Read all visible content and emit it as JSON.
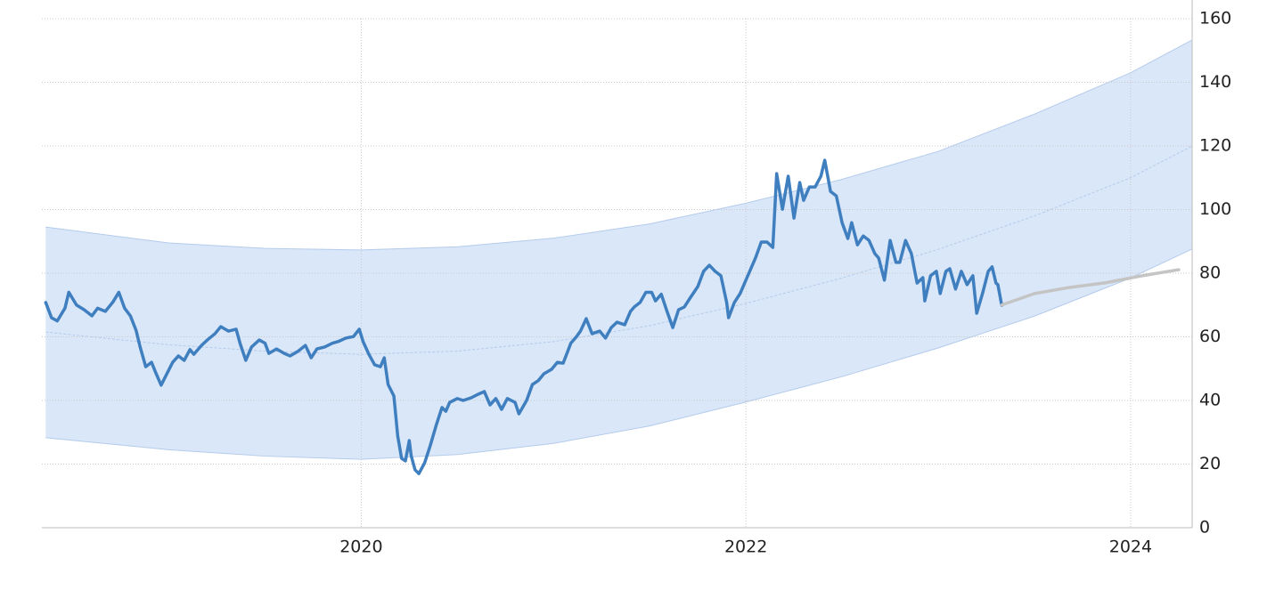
{
  "chart_data": {
    "type": "line",
    "xlim": [
      2018.34,
      2024.32
    ],
    "ylim": [
      0,
      160
    ],
    "xticks": [
      2020,
      2022,
      2024
    ],
    "yticks": [
      0,
      20,
      40,
      60,
      80,
      100,
      120,
      140,
      160
    ],
    "grid": true,
    "series": [
      {
        "color": "#3f7fbf",
        "x": [
          2018.36,
          2018.39,
          2018.42,
          2018.46,
          2018.48,
          2018.52,
          2018.56,
          2018.6,
          2018.63,
          2018.67,
          2018.71,
          2018.74,
          2018.77,
          2018.8,
          2018.83,
          2018.85,
          2018.88,
          2018.91,
          2018.93,
          2018.96,
          2018.99,
          2019.02,
          2019.05,
          2019.08,
          2019.11,
          2019.13,
          2019.17,
          2019.2,
          2019.24,
          2019.27,
          2019.31,
          2019.35,
          2019.37,
          2019.4,
          2019.43,
          2019.47,
          2019.5,
          2019.52,
          2019.56,
          2019.6,
          2019.63,
          2019.67,
          2019.71,
          2019.74,
          2019.77,
          2019.81,
          2019.85,
          2019.88,
          2019.92,
          2019.96,
          2019.99,
          2020.01,
          2020.04,
          2020.07,
          2020.1,
          2020.12,
          2020.14,
          2020.17,
          2020.19,
          2020.21,
          2020.23,
          2020.25,
          2020.26,
          2020.28,
          2020.3,
          2020.33,
          2020.36,
          2020.39,
          2020.42,
          2020.44,
          2020.46,
          2020.5,
          2020.53,
          2020.57,
          2020.61,
          2020.64,
          2020.67,
          2020.7,
          2020.73,
          2020.76,
          2020.8,
          2020.82,
          2020.86,
          2020.89,
          2020.92,
          2020.95,
          2020.99,
          2021.02,
          2021.05,
          2021.09,
          2021.12,
          2021.14,
          2021.17,
          2021.2,
          2021.24,
          2021.27,
          2021.3,
          2021.33,
          2021.37,
          2021.4,
          2021.42,
          2021.45,
          2021.48,
          2021.51,
          2021.53,
          2021.56,
          2021.59,
          2021.62,
          2021.65,
          2021.68,
          2021.71,
          2021.75,
          2021.78,
          2021.81,
          2021.84,
          2021.87,
          2021.9,
          2021.91,
          2021.94,
          2021.97,
          2022.0,
          2022.03,
          2022.05,
          2022.08,
          2022.11,
          2022.14,
          2022.16,
          2022.19,
          2022.22,
          2022.25,
          2022.28,
          2022.3,
          2022.33,
          2022.36,
          2022.39,
          2022.41,
          2022.44,
          2022.47,
          2022.5,
          2022.53,
          2022.55,
          2022.58,
          2022.61,
          2022.64,
          2022.67,
          2022.69,
          2022.72,
          2022.75,
          2022.78,
          2022.8,
          2022.83,
          2022.86,
          2022.89,
          2022.92,
          2022.93,
          2022.96,
          2022.99,
          2023.01,
          2023.04,
          2023.06,
          2023.09,
          2023.12,
          2023.15,
          2023.18,
          2023.2,
          2023.23,
          2023.26,
          2023.28,
          2023.3,
          2023.31,
          2023.33
        ],
        "values": [
          70.8,
          66,
          65,
          69,
          74,
          70,
          68.5,
          66.6,
          69,
          68,
          71,
          74,
          69,
          66.6,
          62,
          57,
          50.6,
          52,
          49,
          44.8,
          48.4,
          52,
          54,
          52.6,
          56,
          54.5,
          57.3,
          59,
          61,
          63.2,
          61.8,
          62.4,
          58,
          52.6,
          56.8,
          59,
          58,
          54.8,
          56.2,
          54.8,
          54,
          55.4,
          57.3,
          53.4,
          56.2,
          56.8,
          58,
          58.5,
          59.6,
          60.1,
          62.4,
          58.5,
          54.5,
          51.2,
          50.6,
          53.4,
          45,
          41.4,
          28.8,
          21.8,
          21,
          27.4,
          22.6,
          18.2,
          17,
          20.4,
          26,
          32.2,
          37.8,
          36.6,
          39.4,
          40.6,
          40,
          40.8,
          42,
          42.8,
          38.6,
          40.6,
          37.2,
          40.6,
          39.4,
          35.8,
          40,
          45,
          46.2,
          48.4,
          49.8,
          52,
          51.7,
          58,
          60.1,
          61.8,
          65.7,
          61,
          61.8,
          59.6,
          62.9,
          64.6,
          63.8,
          68,
          69.4,
          70.8,
          74,
          74,
          71.3,
          73.4,
          68,
          62.9,
          68.5,
          69.4,
          72.2,
          75.8,
          80.6,
          82.5,
          80.6,
          79.2,
          70.8,
          66,
          70.8,
          73.6,
          77.8,
          82,
          84.8,
          89.8,
          89.8,
          88.1,
          111.3,
          100.1,
          110.5,
          97.3,
          108.5,
          102.9,
          107.1,
          107.1,
          110.5,
          115.5,
          105.7,
          104.3,
          95.9,
          90.9,
          95.9,
          88.9,
          91.7,
          90.3,
          86.2,
          84.8,
          77.8,
          90.3,
          83.4,
          83.4,
          90.3,
          86.2,
          76.9,
          78.6,
          71.3,
          79.2,
          80.6,
          73.6,
          80.6,
          81.4,
          75,
          80.6,
          76.4,
          79.2,
          67.4,
          73.6,
          80.6,
          82,
          76.9,
          76.4,
          69.9
        ]
      },
      {
        "color": "#c4c4c4",
        "x": [
          2023.33,
          2023.5,
          2023.68,
          2023.87,
          2024.06,
          2024.25
        ],
        "values": [
          70,
          73.6,
          75.5,
          77,
          79.2,
          81.1
        ]
      }
    ],
    "band": {
      "color": "#dae7f8",
      "x": [
        2018.36,
        2019.0,
        2019.5,
        2020.0,
        2020.5,
        2021.0,
        2021.5,
        2022.0,
        2022.5,
        2023.0,
        2023.5,
        2024.0,
        2024.32
      ],
      "upper": [
        94.5,
        89.5,
        87.8,
        87.3,
        88.3,
        91,
        95.5,
        102,
        109.5,
        118.3,
        130,
        143,
        153.3
      ],
      "lower": [
        28.3,
        24.5,
        22.5,
        21.5,
        23,
        26.5,
        32,
        39.5,
        47.5,
        56.5,
        66.5,
        78.5,
        87.6
      ],
      "mid": [
        61.5,
        57.5,
        55.5,
        54.5,
        55.5,
        58.5,
        63.5,
        70.5,
        78.5,
        87.5,
        98,
        110,
        120
      ]
    }
  }
}
